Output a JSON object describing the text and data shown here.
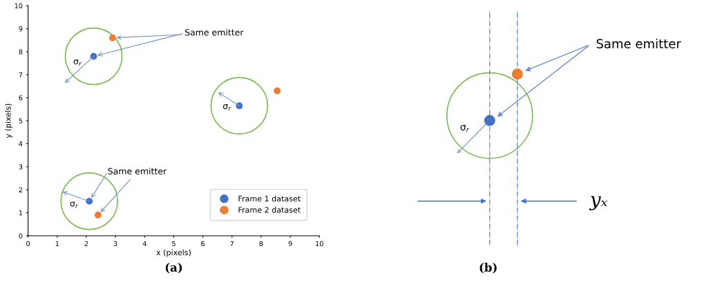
{
  "chart_data": [
    {
      "type": "scatter",
      "title": "(a)",
      "xlabel": "x (pixels)",
      "ylabel": "y (pixels)",
      "xlim": [
        0,
        10
      ],
      "ylim": [
        0,
        10
      ],
      "xticks": [
        0,
        1,
        2,
        3,
        4,
        5,
        6,
        7,
        8,
        9,
        10
      ],
      "yticks": [
        0,
        1,
        2,
        3,
        4,
        5,
        6,
        7,
        8,
        9,
        10
      ],
      "series": [
        {
          "name": "Frame 1 dataset",
          "color": "#4472c4",
          "x": [
            2.25,
            7.25,
            2.1
          ],
          "values": [
            7.8,
            5.65,
            1.5
          ]
        },
        {
          "name": "Frame 2 dataset",
          "color": "#ed7d31",
          "x": [
            2.9,
            8.55,
            2.4
          ],
          "values": [
            8.6,
            6.3,
            0.9
          ]
        }
      ],
      "annotations": [
        {
          "text": "Same emitter",
          "x": 2.9,
          "y": 8.6
        },
        {
          "text": "Same emitter",
          "x": 2.4,
          "y": 0.9
        },
        "σ$_{r}$",
        "σ$_{r}$",
        "σ$_{r}$"
      ],
      "marker": "circle",
      "legend": "bottom right",
      "grid": false
    },
    {
      "type": "other",
      "title": "(b)",
      "annotations": [
        "Same emitter",
        "σ$_{r}$",
        "yₓ"
      ]
    }
  ]
}
